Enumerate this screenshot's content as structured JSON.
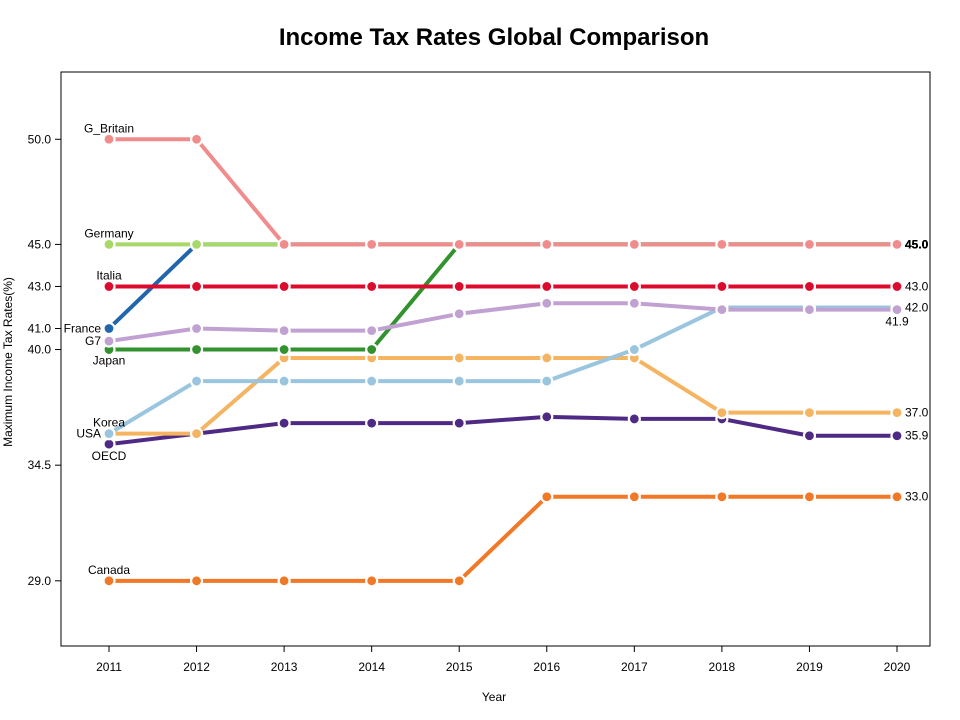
{
  "chart_data": {
    "type": "line",
    "title": "Income Tax Rates Global Comparison",
    "xlabel": "Year",
    "ylabel": "Maximum Income Tax Rates(%)",
    "x": [
      2011,
      2012,
      2013,
      2014,
      2015,
      2016,
      2017,
      2018,
      2019,
      2020
    ],
    "y_ticks": [
      29.0,
      34.5,
      40.0,
      41.0,
      43.0,
      45.0,
      50.0
    ],
    "y_tick_labels": [
      "29.0",
      "34.5",
      "40.0",
      "41.0",
      "43.0",
      "45.0",
      "50.0"
    ],
    "ylim": [
      25.9,
      53.2
    ],
    "grid": false,
    "series": [
      {
        "name": "Canada",
        "color": "#F07826",
        "values": [
          29.0,
          29.0,
          29.0,
          29.0,
          29.0,
          33.0,
          33.0,
          33.0,
          33.0,
          33.0
        ],
        "end_label": "33.0"
      },
      {
        "name": "OECD",
        "color": "#4E2A84",
        "values": [
          35.5,
          36.0,
          36.5,
          36.5,
          36.5,
          36.8,
          36.7,
          36.7,
          35.9,
          35.9
        ],
        "end_label": "35.9"
      },
      {
        "name": "USA",
        "color": "#F5B461",
        "values": [
          36.0,
          36.0,
          39.6,
          39.6,
          39.6,
          39.6,
          39.6,
          37.0,
          37.0,
          37.0
        ],
        "end_label": "37.0"
      },
      {
        "name": "Korea",
        "color": "#99C5DF",
        "values": [
          36.0,
          38.5,
          38.5,
          38.5,
          38.5,
          38.5,
          40.0,
          42.0,
          42.0,
          42.0
        ],
        "end_label": "42.0"
      },
      {
        "name": "Japan",
        "color": "#31922E",
        "values": [
          40.0,
          40.0,
          40.0,
          40.0,
          45.0,
          45.0,
          45.0,
          45.0,
          45.0,
          45.0
        ],
        "end_label": "45.0"
      },
      {
        "name": "G7",
        "color": "#C0A1D2",
        "values": [
          40.4,
          41.0,
          40.9,
          40.9,
          41.7,
          42.2,
          42.2,
          41.9,
          41.9,
          41.9
        ],
        "end_label": "41.9"
      },
      {
        "name": "France",
        "color": "#2166AC",
        "values": [
          41.0,
          45.0,
          45.0,
          45.0,
          45.0,
          45.0,
          45.0,
          45.0,
          45.0,
          45.0
        ],
        "end_label": "45.0"
      },
      {
        "name": "Italia",
        "color": "#DC0A2C",
        "values": [
          43.0,
          43.0,
          43.0,
          43.0,
          43.0,
          43.0,
          43.0,
          43.0,
          43.0,
          43.0
        ],
        "end_label": "43.0"
      },
      {
        "name": "Germany",
        "color": "#A6D96A",
        "values": [
          45.0,
          45.0,
          45.0,
          45.0,
          45.0,
          45.0,
          45.0,
          45.0,
          45.0,
          45.0
        ],
        "end_label": "45.0"
      },
      {
        "name": "G_Britain",
        "color": "#F08C8C",
        "values": [
          50.0,
          50.0,
          45.0,
          45.0,
          45.0,
          45.0,
          45.0,
          45.0,
          45.0,
          45.0
        ],
        "end_label": "45.0"
      }
    ]
  }
}
